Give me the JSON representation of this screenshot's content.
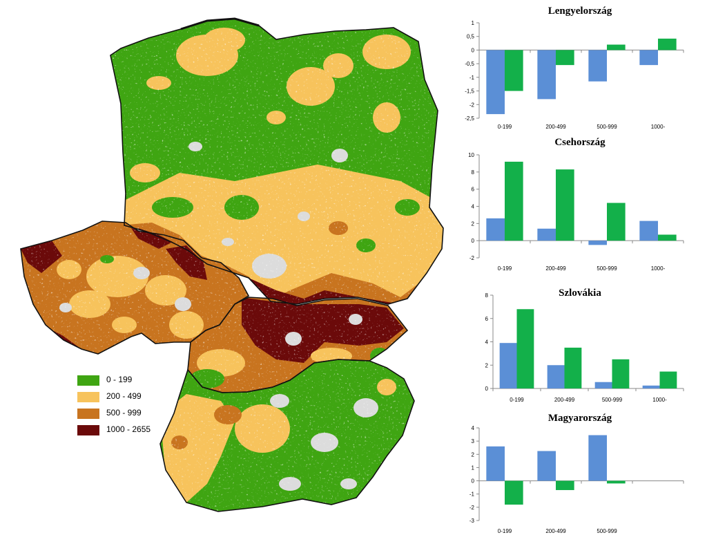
{
  "colors": {
    "class_0_199": "#3fa512",
    "class_200_499": "#f7c35c",
    "class_500_999": "#c8741f",
    "class_1000_2655": "#6b0a0a",
    "nodata": "#dcdcdc",
    "series_blue": "#5b8fd6",
    "series_green": "#13b04a"
  },
  "legend": [
    {
      "label": "0 - 199",
      "color": "#3fa512"
    },
    {
      "label": "200 - 499",
      "color": "#f7c35c"
    },
    {
      "label": "500 - 999",
      "color": "#c8741f"
    },
    {
      "label": "1000 - 2655",
      "color": "#6b0a0a"
    }
  ],
  "chart_data": [
    {
      "type": "bar",
      "title": "Lengyelország",
      "categories": [
        "0-199",
        "200-499",
        "500-999",
        "1000-"
      ],
      "series": [
        {
          "color": "#5b8fd6",
          "values": [
            -2.35,
            -1.8,
            -1.15,
            -0.55
          ]
        },
        {
          "color": "#13b04a",
          "values": [
            -1.5,
            -0.55,
            0.2,
            0.42
          ]
        }
      ],
      "ylim": [
        -2.5,
        1
      ],
      "yticks": [
        1,
        0.5,
        0,
        -0.5,
        -1,
        -1.5,
        -2,
        -2.5
      ],
      "ytick_labels": [
        "1",
        "0,5",
        "0",
        "-0,5",
        "-1",
        "-1,5",
        "-2",
        "-2,5"
      ]
    },
    {
      "type": "bar",
      "title": "Csehország",
      "categories": [
        "0-199",
        "200-499",
        "500-999",
        "1000-"
      ],
      "series": [
        {
          "color": "#5b8fd6",
          "values": [
            2.6,
            1.4,
            -0.5,
            2.3
          ]
        },
        {
          "color": "#13b04a",
          "values": [
            9.2,
            8.3,
            4.4,
            0.7
          ]
        }
      ],
      "ylim": [
        -2,
        10
      ],
      "yticks": [
        10,
        8,
        6,
        4,
        2,
        0,
        -2
      ],
      "ytick_labels": [
        "10",
        "8",
        "6",
        "4",
        "2",
        "0",
        "-2"
      ]
    },
    {
      "type": "bar",
      "title": "Szlovákia",
      "categories": [
        "0-199",
        "200-499",
        "500-999",
        "1000-"
      ],
      "series": [
        {
          "color": "#5b8fd6",
          "values": [
            3.9,
            2.0,
            0.55,
            0.25
          ]
        },
        {
          "color": "#13b04a",
          "values": [
            6.8,
            3.5,
            2.5,
            1.45
          ]
        }
      ],
      "ylim": [
        0,
        8
      ],
      "yticks": [
        8,
        6,
        4,
        2,
        0
      ],
      "ytick_labels": [
        "8",
        "6",
        "4",
        "2",
        "0"
      ]
    },
    {
      "type": "bar",
      "title": "Magyarország",
      "categories": [
        "0-199",
        "200-499",
        "500-999"
      ],
      "series": [
        {
          "color": "#5b8fd6",
          "values": [
            2.6,
            2.25,
            3.45
          ]
        },
        {
          "color": "#13b04a",
          "values": [
            -1.8,
            -0.7,
            -0.2
          ]
        }
      ],
      "ylim": [
        -3,
        4
      ],
      "yticks": [
        4,
        3,
        2,
        1,
        0,
        -1,
        -2,
        -3
      ],
      "ytick_labels": [
        "4",
        "3",
        "2",
        "1",
        "0",
        "-1",
        "-2",
        "-3"
      ]
    }
  ]
}
